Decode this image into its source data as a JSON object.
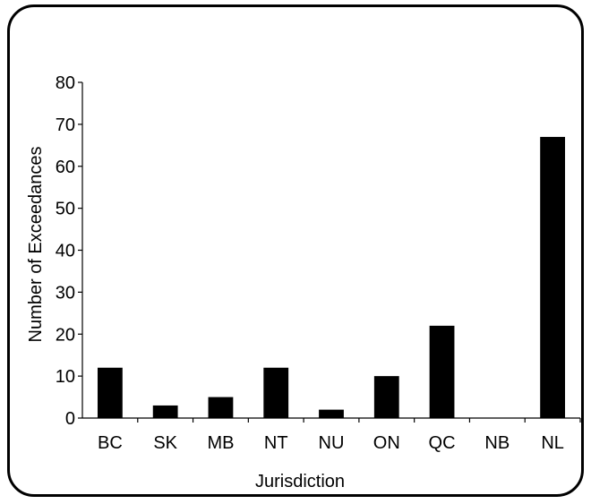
{
  "chart_data": {
    "type": "bar",
    "categories": [
      "BC",
      "SK",
      "MB",
      "NT",
      "NU",
      "ON",
      "QC",
      "NB",
      "NL"
    ],
    "values": [
      12,
      3,
      5,
      12,
      2,
      10,
      22,
      0,
      67
    ],
    "xlabel": "Jurisdiction",
    "ylabel": "Number of Exceedances",
    "ylim": [
      0,
      80
    ],
    "yticks": [
      0,
      10,
      20,
      30,
      40,
      50,
      60,
      70,
      80
    ],
    "grid": false,
    "legend": "none",
    "bar_color": "#000000"
  }
}
